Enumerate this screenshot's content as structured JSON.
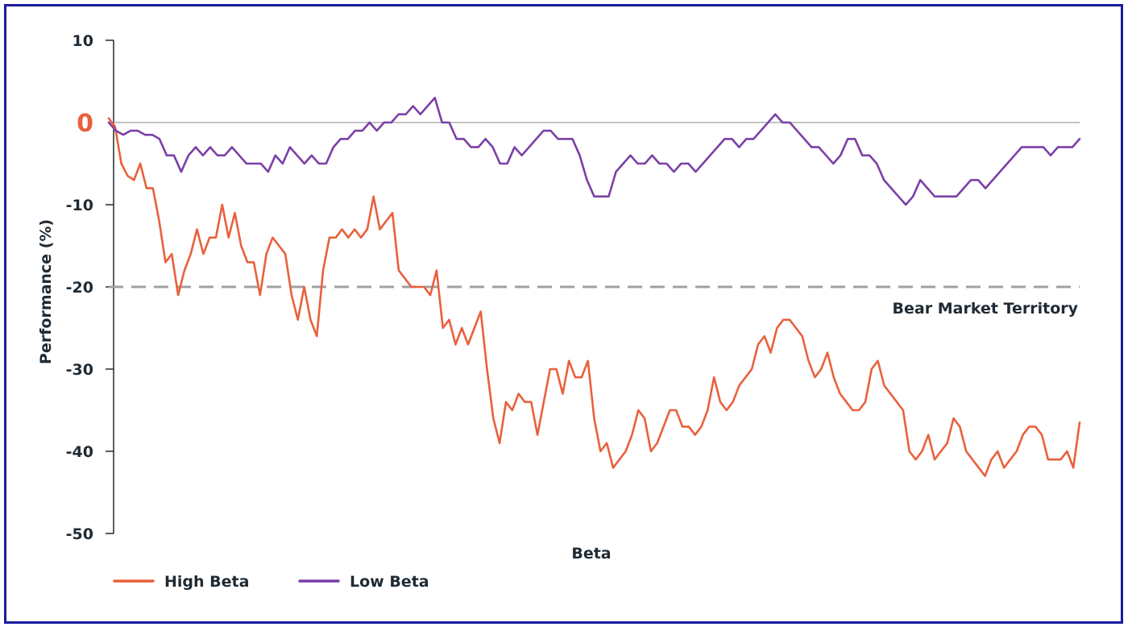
{
  "chart_data": {
    "type": "line",
    "xlabel": "Beta",
    "ylabel": "Performance (%)",
    "ylim": [
      -50,
      10
    ],
    "yticks": [
      "10",
      "-10",
      "-20",
      "-30",
      "-40",
      "-50"
    ],
    "zero_label": "0",
    "grid": false,
    "legend_position": "bottom-left",
    "reference_line": {
      "value": -20,
      "label": "Bear Market Territory",
      "color": "#a0a0a0"
    },
    "zero_line_color": "#888888",
    "series": [
      {
        "name": "High Beta",
        "color": "#e8613c",
        "values": [
          0.5,
          -0.5,
          -5,
          -6.5,
          -7,
          -5,
          -8,
          -8,
          -12,
          -17,
          -16,
          -21,
          -18,
          -16,
          -13,
          -16,
          -14,
          -14,
          -10,
          -14,
          -11,
          -15,
          -17,
          -17,
          -21,
          -16,
          -14,
          -15,
          -16,
          -21,
          -24,
          -20,
          -24,
          -26,
          -18,
          -14,
          -14,
          -13,
          -14,
          -13,
          -14,
          -13,
          -9,
          -13,
          -12,
          -11,
          -18,
          -19,
          -20,
          -20,
          -20,
          -21,
          -18,
          -25,
          -24,
          -27,
          -25,
          -27,
          -25,
          -23,
          -30,
          -36,
          -39,
          -34,
          -35,
          -33,
          -34,
          -34,
          -38,
          -34,
          -30,
          -30,
          -33,
          -29,
          -31,
          -31,
          -29,
          -36,
          -40,
          -39,
          -42,
          -41,
          -40,
          -38,
          -35,
          -36,
          -40,
          -39,
          -37,
          -35,
          -35,
          -37,
          -37,
          -38,
          -37,
          -35,
          -31,
          -34,
          -35,
          -34,
          -32,
          -31,
          -30,
          -27,
          -26,
          -28,
          -25,
          -24,
          -24,
          -25,
          -26,
          -29,
          -31,
          -30,
          -28,
          -31,
          -33,
          -34,
          -35,
          -35,
          -34,
          -30,
          -29,
          -32,
          -33,
          -34,
          -35,
          -40,
          -41,
          -40,
          -38,
          -41,
          -40,
          -39,
          -36,
          -37,
          -40,
          -41,
          -42,
          -43,
          -41,
          -40,
          -42,
          -41,
          -40,
          -38,
          -37,
          -37,
          -38,
          -41,
          -41,
          -41,
          -40,
          -42,
          -36.5
        ]
      },
      {
        "name": "Low Beta",
        "color": "#7b3fa6",
        "values": [
          0,
          -1,
          -1.5,
          -1,
          -1,
          -1.5,
          -1.5,
          -2,
          -4,
          -4,
          -6,
          -4,
          -3,
          -4,
          -3,
          -4,
          -4,
          -3,
          -4,
          -5,
          -5,
          -5,
          -6,
          -4,
          -5,
          -3,
          -4,
          -5,
          -4,
          -5,
          -5,
          -3,
          -2,
          -2,
          -1,
          -1,
          0,
          -1,
          0,
          0,
          1,
          1,
          2,
          1,
          2,
          3,
          0,
          0,
          -2,
          -2,
          -3,
          -3,
          -2,
          -3,
          -5,
          -5,
          -3,
          -4,
          -3,
          -2,
          -1,
          -1,
          -2,
          -2,
          -2,
          -4,
          -7,
          -9,
          -9,
          -9,
          -6,
          -5,
          -4,
          -5,
          -5,
          -4,
          -5,
          -5,
          -6,
          -5,
          -5,
          -6,
          -5,
          -4,
          -3,
          -2,
          -2,
          -3,
          -2,
          -2,
          -1,
          0,
          1,
          0,
          0,
          -1,
          -2,
          -3,
          -3,
          -4,
          -5,
          -4,
          -2,
          -2,
          -4,
          -4,
          -5,
          -7,
          -8,
          -9,
          -10,
          -9,
          -7,
          -8,
          -9,
          -9,
          -9,
          -9,
          -8,
          -7,
          -7,
          -8,
          -7,
          -6,
          -5,
          -4,
          -3,
          -3,
          -3,
          -3,
          -4,
          -3,
          -3,
          -3,
          -2
        ]
      }
    ]
  }
}
